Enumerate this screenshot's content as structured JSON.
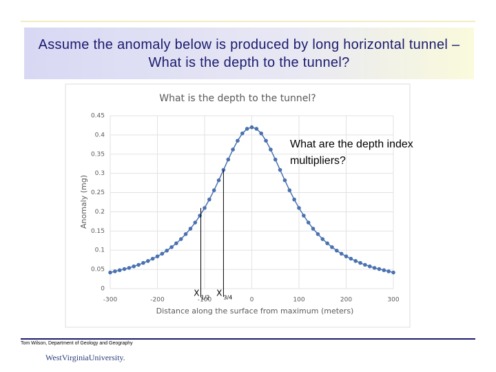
{
  "slide_title": "Assume the anomaly below is produced by long horizontal tunnel – What is the depth to the tunnel?",
  "footer": {
    "credit": "Tom Wilson, Department of Geology and Geography",
    "logo": "WestVirginiaUniversity."
  },
  "chart_data": {
    "type": "line",
    "title": "What is the depth to the tunnel?",
    "x_label": "Distance along the surface from maximum (meters)",
    "y_label": "Anomaly (mg)",
    "x": [
      -300,
      -290,
      -280,
      -270,
      -260,
      -250,
      -240,
      -230,
      -220,
      -210,
      -200,
      -190,
      -180,
      -170,
      -160,
      -150,
      -140,
      -130,
      -120,
      -110,
      -100,
      -90,
      -80,
      -70,
      -60,
      -50,
      -40,
      -30,
      -20,
      -10,
      0,
      10,
      20,
      30,
      40,
      50,
      60,
      70,
      80,
      90,
      100,
      110,
      120,
      130,
      140,
      150,
      160,
      170,
      180,
      190,
      200,
      210,
      220,
      230,
      240,
      250,
      260,
      270,
      280,
      290,
      300
    ],
    "series": [
      {
        "name": "Anomaly",
        "color": "#4a72b0",
        "values": [
          0.042,
          0.045,
          0.048,
          0.051,
          0.054,
          0.058,
          0.062,
          0.067,
          0.072,
          0.078,
          0.084,
          0.091,
          0.099,
          0.108,
          0.118,
          0.129,
          0.142,
          0.156,
          0.172,
          0.19,
          0.21,
          0.232,
          0.256,
          0.282,
          0.309,
          0.336,
          0.362,
          0.385,
          0.404,
          0.416,
          0.42,
          0.416,
          0.404,
          0.385,
          0.362,
          0.336,
          0.309,
          0.282,
          0.256,
          0.232,
          0.21,
          0.19,
          0.172,
          0.156,
          0.142,
          0.129,
          0.118,
          0.108,
          0.099,
          0.091,
          0.084,
          0.078,
          0.072,
          0.067,
          0.062,
          0.058,
          0.054,
          0.051,
          0.048,
          0.045,
          0.042
        ]
      }
    ],
    "xlim": [
      -300,
      300
    ],
    "xticks": [
      -300,
      -200,
      -100,
      0,
      100,
      200,
      300
    ],
    "ylim": [
      0,
      0.45
    ],
    "yticks": [
      0,
      0.05,
      0.1,
      0.15,
      0.2,
      0.25,
      0.3,
      0.35,
      0.4,
      0.45
    ],
    "grid": true,
    "annotation": "What are the depth index multipliers?",
    "marker_lines": [
      {
        "label": "X",
        "sub": "1/2",
        "x": -108,
        "y": 0.21
      },
      {
        "label": "X",
        "sub": "3/4",
        "x": -60,
        "y": 0.309
      }
    ]
  }
}
